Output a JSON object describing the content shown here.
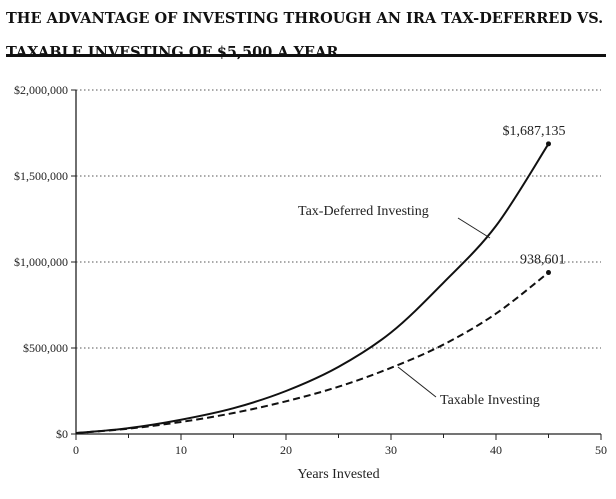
{
  "chart_data": {
    "type": "line",
    "title": "THE ADVANTAGE OF INVESTING THROUGH AN IRA TAX-DEFERRED VS. TAXABLE INVESTING OF $5,500 A YEAR",
    "xlabel": "Years Invested",
    "ylabel": "",
    "xlim": [
      0,
      50
    ],
    "ylim": [
      0,
      2000000
    ],
    "x_ticks": [
      "0",
      "10",
      "20",
      "30",
      "40",
      "50"
    ],
    "y_ticks": [
      "$0",
      "$500,000",
      "$1,000,000",
      "$1,500,000",
      "$2,000,000"
    ],
    "grid": "horizontal dotted",
    "series": [
      {
        "name": "Tax-Deferred Investing",
        "style": "solid",
        "x": [
          0,
          5,
          10,
          15,
          20,
          25,
          30,
          35,
          40,
          45
        ],
        "values": [
          5500,
          34000,
          83000,
          150000,
          250000,
          390000,
          590000,
          880000,
          1210000,
          1687135
        ],
        "end_label": "$1,687,135"
      },
      {
        "name": "Taxable Investing",
        "style": "dashed",
        "x": [
          0,
          5,
          10,
          15,
          20,
          25,
          30,
          35,
          40,
          45
        ],
        "values": [
          5500,
          31000,
          70000,
          122000,
          190000,
          275000,
          385000,
          520000,
          700000,
          938601
        ],
        "end_label": "938,601"
      }
    ]
  }
}
